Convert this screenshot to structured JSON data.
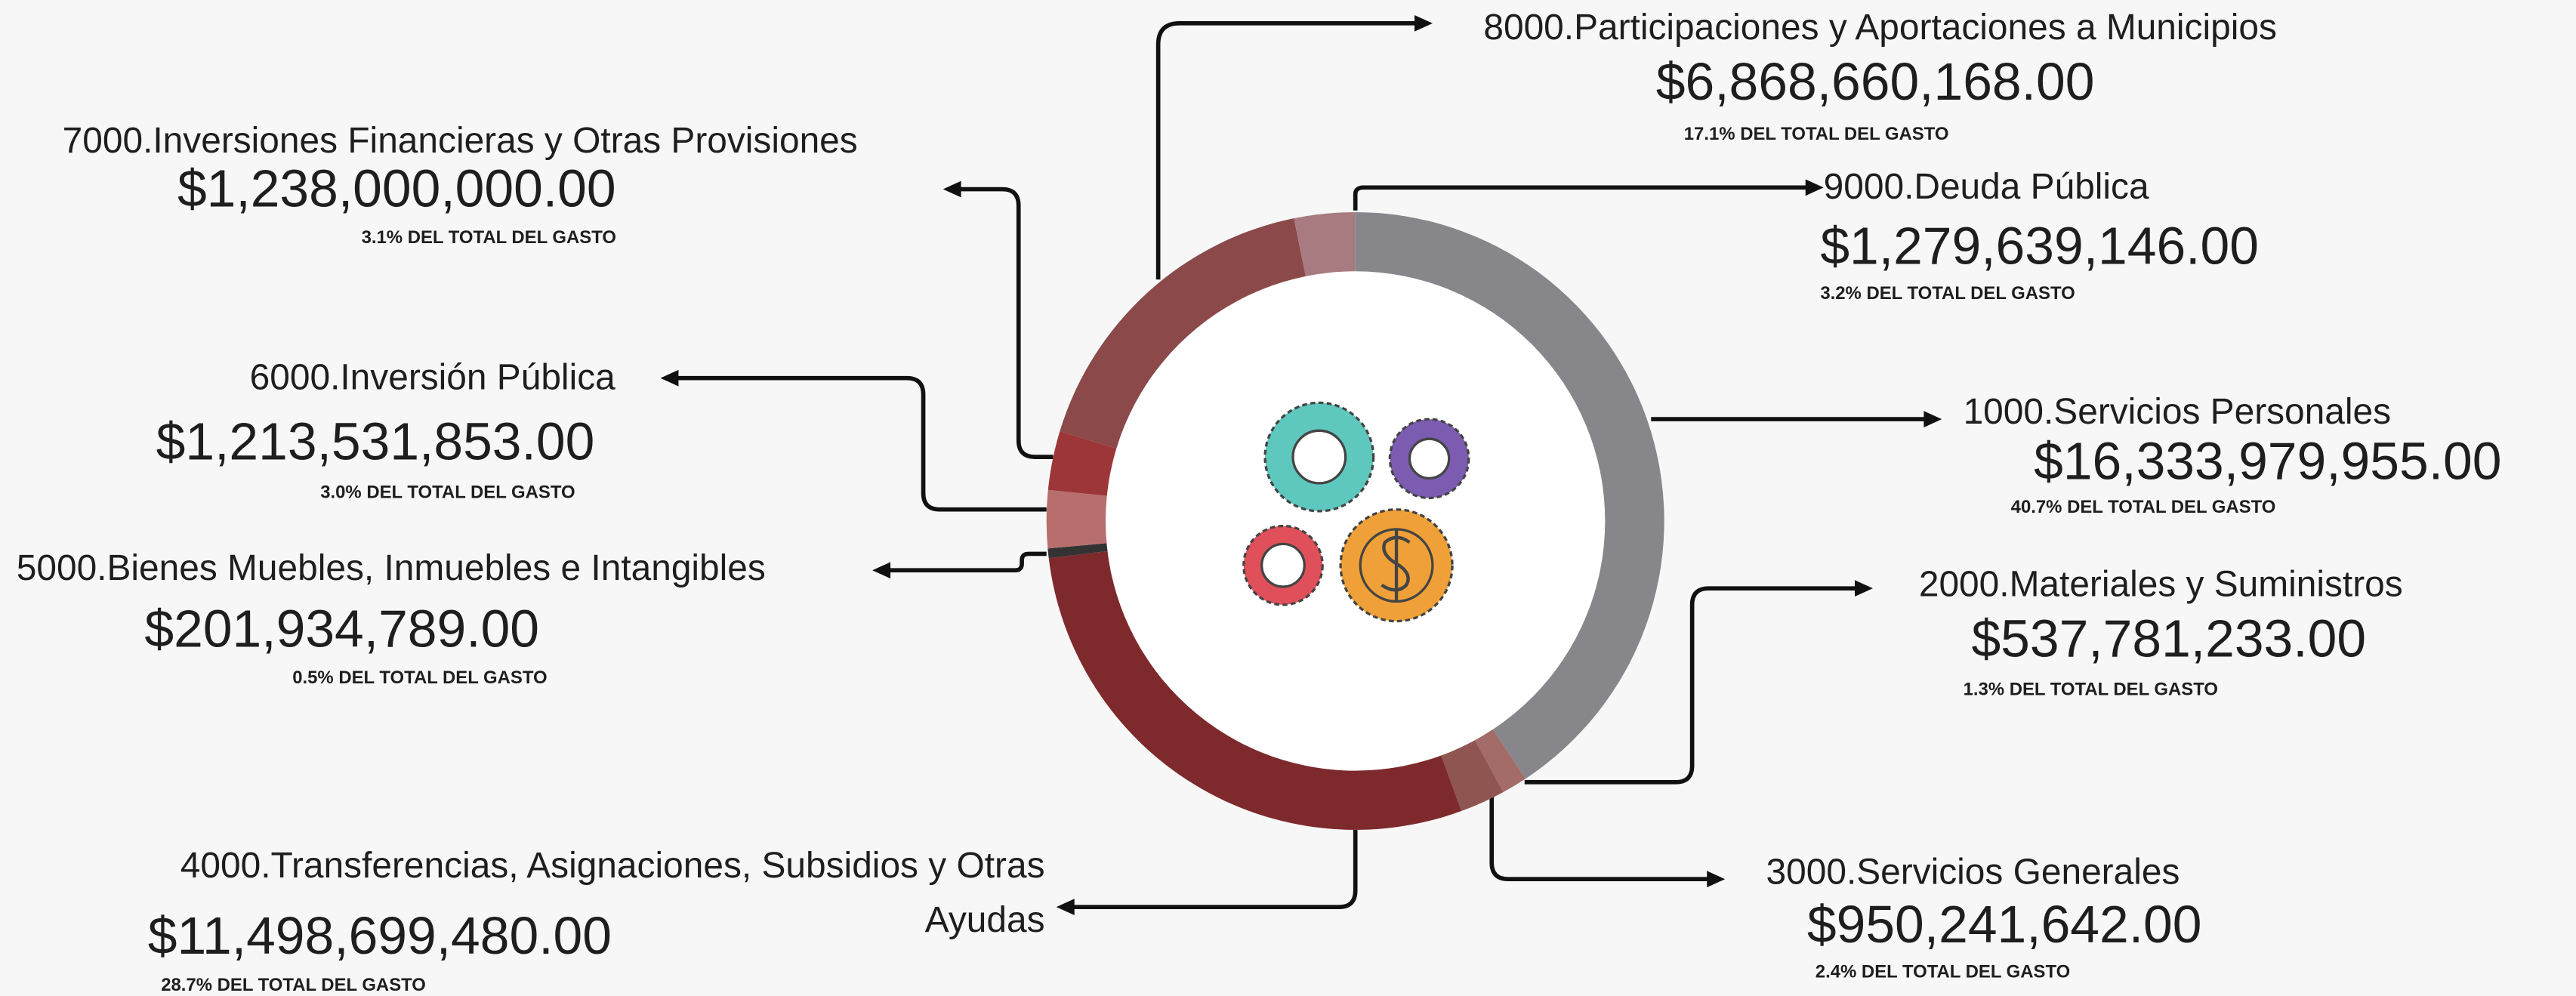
{
  "chart_data": {
    "type": "donut",
    "categories": [
      "1000.Servicios Personales",
      "2000.Materiales y Suministros",
      "3000.Servicios Generales",
      "4000.Transferencias, Asignaciones, Subsidios y Otras Ayudas",
      "5000.Bienes Muebles, Inmuebles e Intangibles",
      "6000.Inversión Pública",
      "7000.Inversiones Financieras y Otras Provisiones",
      "8000.Participaciones y Aportaciones a Municipios",
      "9000.Deuda Pública"
    ],
    "values": [
      16333979955,
      537781233,
      950241642,
      11498699480,
      201934789,
      1213531853,
      1238000000,
      6868660168,
      1279639146
    ],
    "value_labels": [
      "$16,333,979,955.00",
      "$537,781,233.00",
      "$950,241,642.00",
      "$11,498,699,480.00",
      "$201,934,789.00",
      "$1,213,531,853.00",
      "$1,238,000,000.00",
      "$6,868,660,168.00",
      "$1,279,639,146.00"
    ],
    "share_labels": [
      "40.7% DEL TOTAL DEL GASTO",
      "1.3% DEL TOTAL DEL GASTO",
      "2.4% DEL TOTAL DEL GASTO",
      "28.7% DEL TOTAL DEL GASTO",
      "0.5% DEL TOTAL DEL GASTO",
      "3.0% DEL TOTAL DEL GASTO",
      "3.1% DEL TOTAL DEL GASTO",
      "17.1% DEL TOTAL DEL GASTO",
      "3.2% DEL TOTAL DEL GASTO"
    ],
    "colors": [
      "#87878b",
      "#a36c69",
      "#8f5551",
      "#7e2a2d",
      "#333333",
      "#b96e6e",
      "#9d3638",
      "#8b4949",
      "#a77b7f"
    ]
  }
}
